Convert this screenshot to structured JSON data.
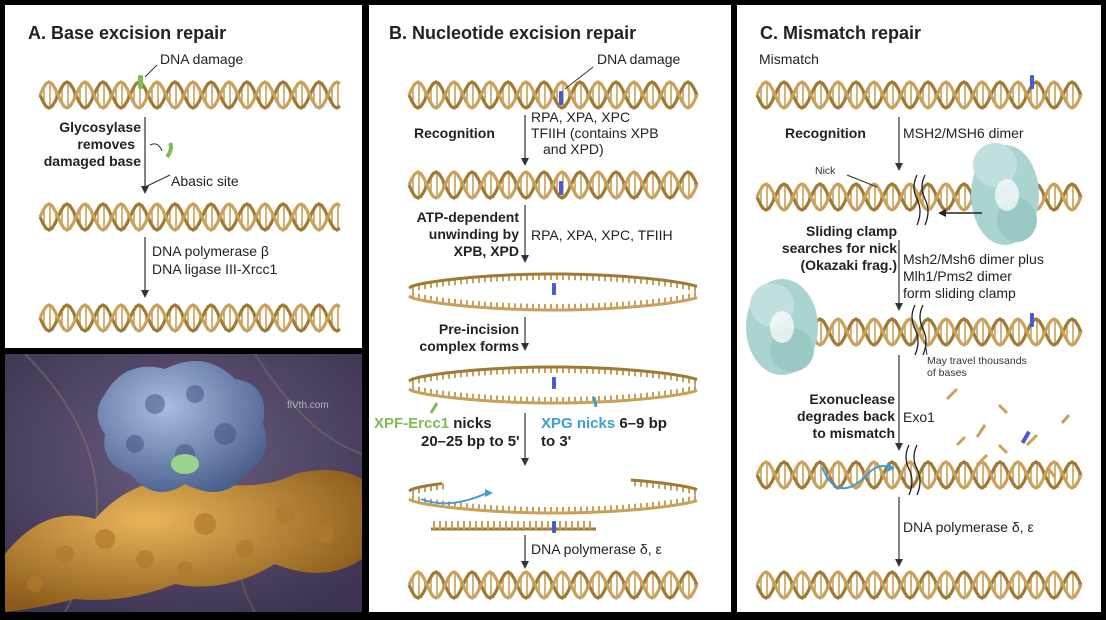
{
  "panel_a": {
    "title": "A. Base excision repair",
    "dna_damage": "DNA damage",
    "glycosylase": [
      "Glycosylase",
      "removes",
      "damaged base"
    ],
    "abasic": "Abasic site",
    "polymerase": "DNA polymerase β",
    "ligase": "DNA ligase III-Xrcc1"
  },
  "panel_img": {
    "watermark": "fiVth.com"
  },
  "panel_b": {
    "title": "B. Nucleotide excision repair",
    "dna_damage": "DNA damage",
    "recognition": "Recognition",
    "recog_factors": [
      "RPA, XPA, XPC",
      "TFIIH (contains XPB",
      "and XPD)"
    ],
    "unwinding": [
      "ATP-dependent",
      "unwinding by",
      "XPB, XPD"
    ],
    "unwind_factors": "RPA, XPA, XPC, TFIIH",
    "preincision": [
      "Pre-incision",
      "complex forms"
    ],
    "xpf": "XPF-Ercc1",
    "xpf_rest": " nicks",
    "xpf_line2": "20–25 bp to 5'",
    "xpg": "XPG nicks",
    "xpg_rest": " 6–9 bp",
    "xpg_line2": "to 3'",
    "polymerase": "DNA polymerase δ, ε"
  },
  "panel_c": {
    "title": "C. Mismatch repair",
    "mismatch": "Mismatch",
    "recognition": "Recognition",
    "msh": "MSH2/MSH6 dimer",
    "nick": "Nick",
    "sliding": [
      "Sliding clamp",
      "searches for nick",
      "(Okazaki frag.)"
    ],
    "clamp_desc": [
      "Msh2/Msh6 dimer plus",
      "Mlh1/Pms2 dimer",
      "form sliding clamp"
    ],
    "travel": [
      "May travel thousands",
      "of bases"
    ],
    "exonuclease": [
      "Exonuclease",
      "degrades back",
      "to mismatch"
    ],
    "exo1": "Exo1",
    "polymerase": "DNA polymerase δ, ε"
  },
  "colors": {
    "dna": "#c9a15a",
    "dna_dark": "#a07a35",
    "damage_green": "#7bbf52",
    "damage_blue": "#4a5ad0",
    "protein": "#a9d4d0",
    "arrow_blue": "#3d9fd3"
  }
}
